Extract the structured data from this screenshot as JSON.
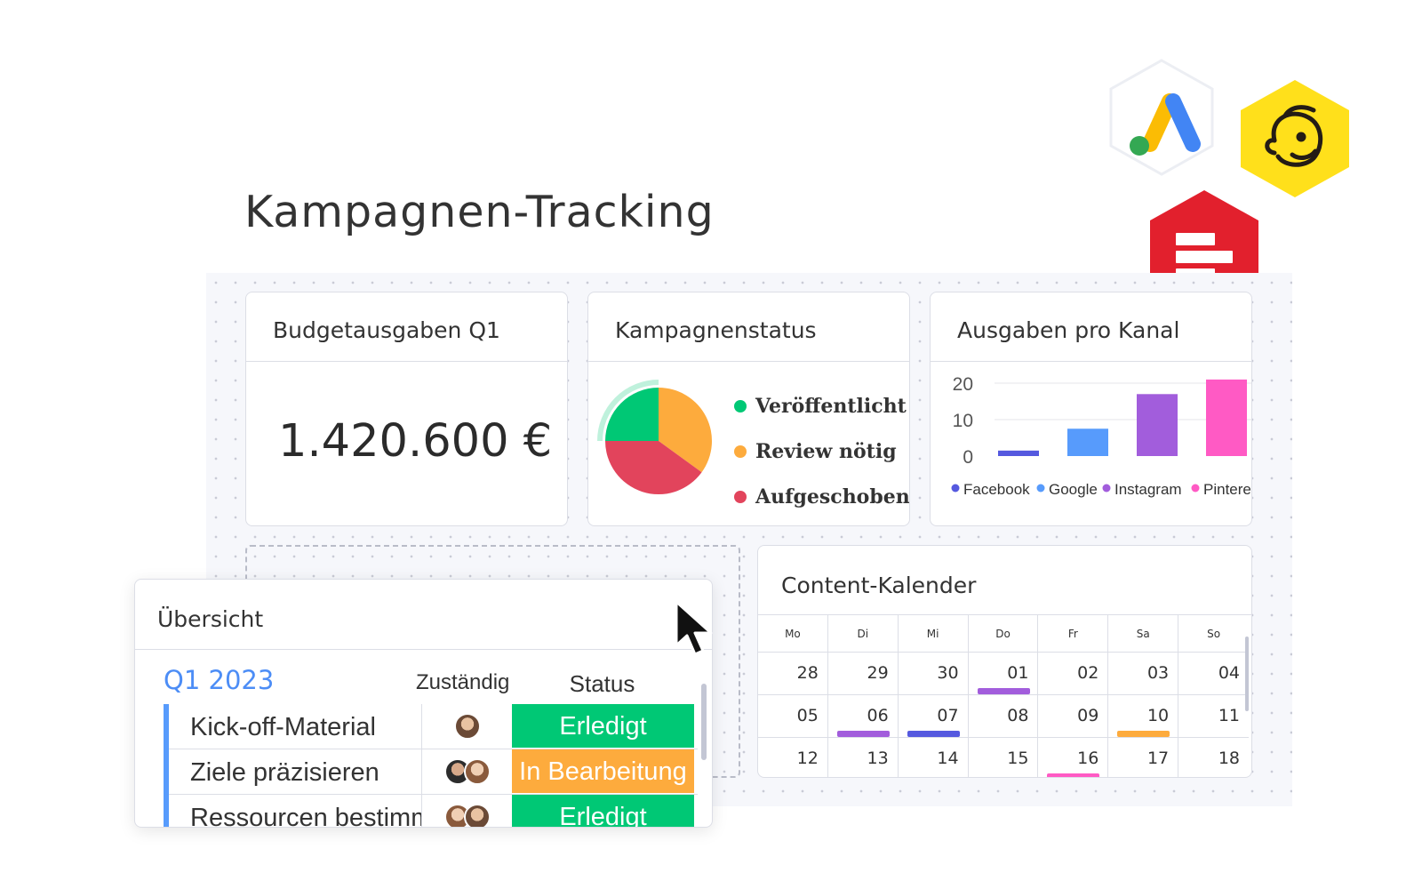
{
  "page": {
    "title": "Kampagnen-Tracking"
  },
  "budget_widget": {
    "title": "Budgetausgaben Q1",
    "value": "1.420.600 €"
  },
  "status_widget": {
    "title": "Kampagnenstatus",
    "legend": [
      {
        "label": "Veröffentlicht",
        "color": "#00c875"
      },
      {
        "label": "Review nötig",
        "color": "#fdab3d"
      },
      {
        "label": "Aufgeschoben",
        "color": "#e2445c"
      }
    ]
  },
  "channel_widget": {
    "title": "Ausgaben pro Kanal"
  },
  "chart_data": [
    {
      "type": "pie",
      "labels": [
        "Veröffentlicht",
        "Review nötig",
        "Aufgeschoben"
      ],
      "values": [
        25,
        35,
        40
      ],
      "colors": [
        "#00c875",
        "#fdab3d",
        "#e2445c"
      ]
    },
    {
      "type": "bar",
      "categories": [
        "Facebook",
        "Google",
        "Instagram",
        "Pinterest"
      ],
      "legend_labels": [
        "Facebook",
        "Google",
        "Instagram",
        "Pintere"
      ],
      "values": [
        1.5,
        7.5,
        17,
        21
      ],
      "colors": [
        "#5559df",
        "#579bfc",
        "#a25ddc",
        "#ff5ac4"
      ],
      "yticks": [
        "20",
        "10",
        "0"
      ],
      "ylim": [
        0,
        20
      ],
      "legend_position": "bottom"
    }
  ],
  "calendar": {
    "title": "Content-Kalender",
    "weekdays": [
      "Mo",
      "Di",
      "Mi",
      "Do",
      "Fr",
      "Sa",
      "So"
    ],
    "weeks": [
      [
        "28",
        "29",
        "30",
        "01",
        "02",
        "03",
        "04"
      ],
      [
        "05",
        "06",
        "07",
        "08",
        "09",
        "10",
        "11"
      ],
      [
        "12",
        "13",
        "14",
        "15",
        "16",
        "17",
        "18"
      ]
    ],
    "markers": [
      {
        "week": 0,
        "day": 3,
        "color": "#a25ddc"
      },
      {
        "week": 1,
        "day": 1,
        "color": "#a25ddc"
      },
      {
        "week": 1,
        "day": 2,
        "color": "#5559df"
      },
      {
        "week": 1,
        "day": 5,
        "color": "#fdab3d"
      },
      {
        "week": 2,
        "day": 4,
        "color": "#ff5ac4"
      }
    ]
  },
  "overview": {
    "title": "Übersicht",
    "group": "Q1 2023",
    "columns": {
      "owner": "Zuständig",
      "status": "Status"
    },
    "rows": [
      {
        "name": "Kick-off-Material",
        "status": "Erledigt",
        "status_color": "#00c875",
        "avatars": 1
      },
      {
        "name": "Ziele präzisieren",
        "status": "In Bearbeitung",
        "status_color": "#fdab3d",
        "avatars": 2
      },
      {
        "name": "Ressourcen bestimme",
        "status": "Erledigt",
        "status_color": "#00c875",
        "avatars": 2
      }
    ]
  },
  "integrations": [
    "google-ads-icon",
    "mailchimp-icon",
    "monday-forms-icon"
  ]
}
